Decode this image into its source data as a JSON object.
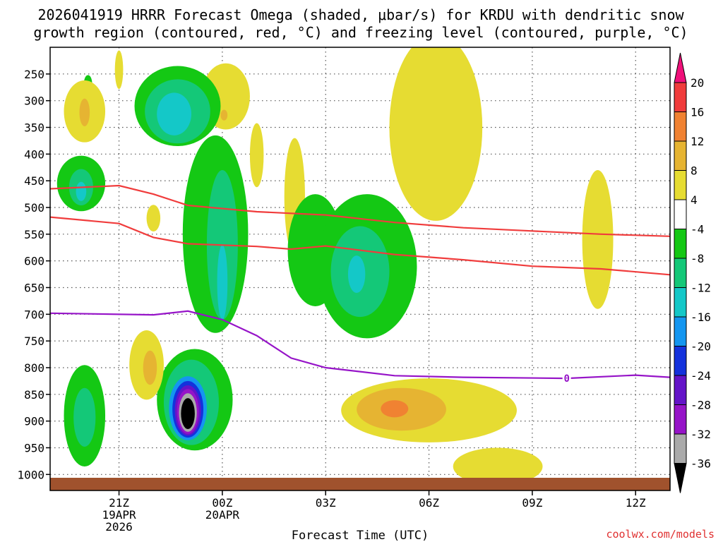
{
  "chart_data": {
    "type": "contour",
    "title_line1": "2026041919 HRRR Forecast Omega (shaded, μbar/s) for KRDU with dendritic snow",
    "title_line2": "growth region (contoured, red, °C) and freezing level (contoured, purple, °C)",
    "xlabel": "Forecast Time (UTC)",
    "credit": "coolwx.com/models",
    "y_axis": {
      "unit": "hPa",
      "range": [
        200,
        1030
      ],
      "ticks": [
        250,
        300,
        350,
        400,
        450,
        500,
        550,
        600,
        650,
        700,
        750,
        800,
        850,
        900,
        950,
        1000
      ]
    },
    "x_axis": {
      "unit": "forecast hour",
      "range": [
        0,
        18
      ],
      "ticks": [
        {
          "hour": 2,
          "lines": [
            "21Z",
            "19APR",
            "2026"
          ]
        },
        {
          "hour": 5,
          "lines": [
            "00Z",
            "20APR"
          ]
        },
        {
          "hour": 8,
          "lines": [
            "03Z"
          ]
        },
        {
          "hour": 11,
          "lines": [
            "06Z"
          ]
        },
        {
          "hour": 14,
          "lines": [
            "09Z"
          ]
        },
        {
          "hour": 17,
          "lines": [
            "12Z"
          ]
        }
      ]
    },
    "colorbar": {
      "labels": [
        "20",
        "16",
        "12",
        "8",
        "4",
        "-4",
        "-8",
        "-12",
        "-16",
        "-20",
        "-24",
        "-28",
        "-32",
        "-36"
      ],
      "colors": [
        "#f0107a",
        "#f03c3c",
        "#f08232",
        "#e6b432",
        "#e6dc32",
        "#ffffff",
        "#14c814",
        "#14c878",
        "#14c8c8",
        "#1496f0",
        "#1432dc",
        "#6414c8",
        "#9614c8",
        "#aaaaaa",
        "#000000"
      ]
    },
    "red_contours": [
      {
        "name": "-12 C",
        "points": [
          [
            0,
            465
          ],
          [
            2,
            459
          ],
          [
            3,
            475
          ],
          [
            4,
            496
          ],
          [
            6,
            508
          ],
          [
            8,
            514
          ],
          [
            10,
            528
          ],
          [
            12,
            538
          ],
          [
            14,
            544
          ],
          [
            16,
            550
          ],
          [
            18,
            554
          ]
        ]
      },
      {
        "name": "-17 C",
        "points": [
          [
            0,
            518
          ],
          [
            2,
            530
          ],
          [
            3,
            556
          ],
          [
            4,
            568
          ],
          [
            6,
            573
          ],
          [
            7,
            578
          ],
          [
            8,
            572
          ],
          [
            10,
            588
          ],
          [
            12,
            598
          ],
          [
            14,
            610
          ],
          [
            16,
            615
          ],
          [
            18,
            626
          ]
        ]
      }
    ],
    "purple_contour": {
      "name": "0 C",
      "label": "0",
      "label_hour": 15,
      "points": [
        [
          0,
          698
        ],
        [
          3,
          701
        ],
        [
          4,
          694
        ],
        [
          5,
          710
        ],
        [
          6,
          740
        ],
        [
          7,
          782
        ],
        [
          8,
          800
        ],
        [
          10,
          815
        ],
        [
          12,
          818
        ],
        [
          15,
          820
        ],
        [
          17,
          814
        ],
        [
          18,
          818
        ]
      ]
    },
    "shaded_regions": [
      {
        "level": "-4",
        "color": "#14c814",
        "hour": 1.1,
        "p": 268,
        "rh": 0.12,
        "rp": 16
      },
      {
        "level": "4",
        "color": "#e6dc32",
        "hour": 2.0,
        "p": 242,
        "rh": 0.12,
        "rp": 36
      },
      {
        "level": "4",
        "color": "#e6dc32",
        "hour": 1.0,
        "p": 320,
        "rh": 0.6,
        "rp": 58
      },
      {
        "level": "8",
        "color": "#e6b432",
        "hour": 1.0,
        "p": 322,
        "rh": 0.15,
        "rp": 26
      },
      {
        "level": "-4",
        "color": "#14c814",
        "hour": 0.9,
        "p": 455,
        "rh": 0.7,
        "rp": 52
      },
      {
        "level": "-8",
        "color": "#14c878",
        "hour": 0.9,
        "p": 462,
        "rh": 0.35,
        "rp": 34
      },
      {
        "level": "-12",
        "color": "#14c8c8",
        "hour": 0.9,
        "p": 470,
        "rh": 0.15,
        "rp": 18
      },
      {
        "level": "4",
        "color": "#e6dc32",
        "hour": 5.1,
        "p": 292,
        "rh": 0.7,
        "rp": 62
      },
      {
        "level": "8",
        "color": "#e6b432",
        "hour": 5.05,
        "p": 327,
        "rh": 0.1,
        "rp": 10
      },
      {
        "level": "4",
        "color": "#e6dc32",
        "hour": 6.0,
        "p": 402,
        "rh": 0.2,
        "rp": 60
      },
      {
        "level": "4",
        "color": "#e6dc32",
        "hour": 3.0,
        "p": 520,
        "rh": 0.2,
        "rp": 25
      },
      {
        "level": "-4",
        "color": "#14c814",
        "hour": 3.7,
        "p": 310,
        "rh": 1.25,
        "rp": 75
      },
      {
        "level": "-4",
        "color": "#14c814",
        "hour": 4.8,
        "p": 550,
        "rh": 0.95,
        "rp": 185
      },
      {
        "level": "-4",
        "color": "#14c814",
        "hour": 4.2,
        "p": 860,
        "rh": 1.1,
        "rp": 95
      },
      {
        "level": "-8",
        "color": "#14c878",
        "hour": 3.7,
        "p": 320,
        "rh": 0.95,
        "rp": 60
      },
      {
        "level": "-8",
        "color": "#14c878",
        "hour": 5.0,
        "p": 570,
        "rh": 0.45,
        "rp": 140
      },
      {
        "level": "-8",
        "color": "#14c878",
        "hour": 4.1,
        "p": 865,
        "rh": 0.8,
        "rp": 80
      },
      {
        "level": "-12",
        "color": "#14c8c8",
        "hour": 3.6,
        "p": 325,
        "rh": 0.5,
        "rp": 40
      },
      {
        "level": "-12",
        "color": "#14c8c8",
        "hour": 5.0,
        "p": 640,
        "rh": 0.15,
        "rp": 70
      },
      {
        "level": "-16",
        "color": "#1496f0",
        "hour": 4.0,
        "p": 876,
        "rh": 0.55,
        "rp": 60
      },
      {
        "level": "-20",
        "color": "#1432dc",
        "hour": 4.0,
        "p": 878,
        "rh": 0.45,
        "rp": 53
      },
      {
        "level": "-24",
        "color": "#6414c8",
        "hour": 4.0,
        "p": 880,
        "rh": 0.38,
        "rp": 47
      },
      {
        "level": "-28",
        "color": "#9614c8",
        "hour": 4.0,
        "p": 882,
        "rh": 0.32,
        "rp": 42
      },
      {
        "level": "-32",
        "color": "#aaaaaa",
        "hour": 4.0,
        "p": 884,
        "rh": 0.26,
        "rp": 36
      },
      {
        "level": "-36",
        "color": "#000000",
        "hour": 4.0,
        "p": 886,
        "rh": 0.2,
        "rp": 29
      },
      {
        "level": "4",
        "color": "#e6dc32",
        "hour": 2.8,
        "p": 795,
        "rh": 0.5,
        "rp": 65
      },
      {
        "level": "8",
        "color": "#e6b432",
        "hour": 2.9,
        "p": 800,
        "rh": 0.2,
        "rp": 32
      },
      {
        "level": "-4",
        "color": "#14c814",
        "hour": 1.0,
        "p": 890,
        "rh": 0.6,
        "rp": 95
      },
      {
        "level": "-8",
        "color": "#14c878",
        "hour": 1.0,
        "p": 893,
        "rh": 0.32,
        "rp": 55
      },
      {
        "level": "4",
        "color": "#e6dc32",
        "hour": 7.1,
        "p": 480,
        "rh": 0.3,
        "rp": 110
      },
      {
        "level": "-4",
        "color": "#14c814",
        "hour": 7.7,
        "p": 580,
        "rh": 0.8,
        "rp": 105
      },
      {
        "level": "-4",
        "color": "#14c814",
        "hour": 9.2,
        "p": 610,
        "rh": 1.45,
        "rp": 135
      },
      {
        "level": "-8",
        "color": "#14c878",
        "hour": 9.0,
        "p": 620,
        "rh": 0.85,
        "rp": 85
      },
      {
        "level": "-12",
        "color": "#14c8c8",
        "hour": 8.9,
        "p": 625,
        "rh": 0.25,
        "rp": 35
      },
      {
        "level": "4",
        "color": "#e6dc32",
        "hour": 11.2,
        "p": 350,
        "rh": 1.35,
        "rp": 175
      },
      {
        "level": "4",
        "color": "#e6dc32",
        "hour": 11.0,
        "p": 880,
        "rh": 2.55,
        "rp": 60
      },
      {
        "level": "8",
        "color": "#e6b432",
        "hour": 10.2,
        "p": 878,
        "rh": 1.3,
        "rp": 40
      },
      {
        "level": "12",
        "color": "#f08232",
        "hour": 10.0,
        "p": 877,
        "rh": 0.4,
        "rp": 16
      },
      {
        "level": "4",
        "color": "#e6dc32",
        "hour": 13.0,
        "p": 985,
        "rh": 1.3,
        "rp": 35
      },
      {
        "level": "4",
        "color": "#e6dc32",
        "hour": 15.9,
        "p": 560,
        "rh": 0.45,
        "rp": 130
      }
    ]
  }
}
